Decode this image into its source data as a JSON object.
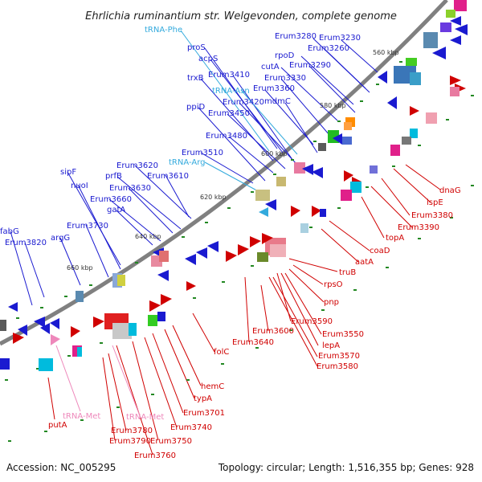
{
  "title": "Ehrlichia ruminantium str. Welgevonden, complete genome",
  "footer": {
    "accession": "Accession: NC_005295",
    "summary": "Topology: circular; Length: 1,516,355 bp; Genes: 928"
  },
  "colors": {
    "forward_label": "#1a1ad0",
    "reverse_label": "#d00000",
    "trna_forward": "#33aadd",
    "trna_reverse": "#ee88bb",
    "backbone": "#808080",
    "tick": "#228822"
  },
  "ticks": [
    "560 kbp",
    "580 kbp",
    "600 kbp",
    "620 kbp",
    "640 kbp",
    "660 kbp"
  ],
  "forward_labels": [
    "Erum3230",
    "Erum3280",
    "Erum3260",
    "rpoD",
    "Erum3290",
    "cutA",
    "Erum3330",
    "proS",
    "acpS",
    "Erum3410",
    "trxB",
    "tRNA-Phe",
    "tRNA-Asn",
    "Erum3360",
    "Erum3420",
    "mdmC",
    "Erum3450",
    "ppiD",
    "Erum3480",
    "Erum3510",
    "tRNA-Arg",
    "Erum3620",
    "prfB",
    "Erum3610",
    "Erum3630",
    "Erum3660",
    "sipF",
    "nuoI",
    "gatA",
    "Erum3730",
    "argG",
    "fabG",
    "Erum3820"
  ],
  "reverse_labels": [
    "dnaG",
    "ispE",
    "Erum3380",
    "Erum3390",
    "topA",
    "coaD",
    "aatA",
    "truB",
    "rpsO",
    "pnp",
    "Erum3590",
    "Erum3550",
    "lepA",
    "Erum3570",
    "Erum3580",
    "Erum3600",
    "Erum3640",
    "folC",
    "hemC",
    "typA",
    "Erum3701",
    "Erum3740",
    "tRNA-Met",
    "Erum3750",
    "Erum3780",
    "Erum3790",
    "Erum3760",
    "tRNA-Met",
    "putA"
  ]
}
